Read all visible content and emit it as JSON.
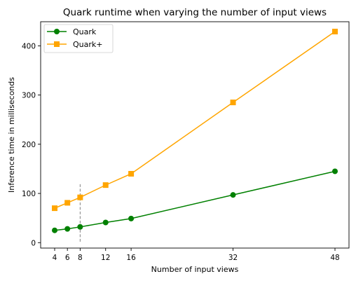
{
  "chart_data": {
    "type": "line",
    "title": "Quark runtime when varying the number of input views",
    "xlabel": "Number of input views",
    "ylabel": "Inference time in milliseconds",
    "x": [
      4,
      6,
      8,
      12,
      16,
      32,
      48
    ],
    "x_ticks": [
      4,
      6,
      8,
      12,
      16,
      32,
      48
    ],
    "y_ticks": [
      0,
      100,
      200,
      300,
      400
    ],
    "xlim": [
      1.8,
      50.2
    ],
    "ylim": [
      -11,
      449
    ],
    "grid": false,
    "legend_position": "top-left",
    "series": [
      {
        "name": "Quark",
        "color": "#008000",
        "marker": "circle",
        "values": [
          25,
          28,
          32,
          41,
          49,
          97,
          145
        ]
      },
      {
        "name": "Quark+",
        "color": "#FFA500",
        "marker": "square",
        "values": [
          70,
          81,
          92,
          117,
          140,
          285,
          429
        ]
      }
    ],
    "annotations": [
      {
        "type": "vertical-dashed-line",
        "x": 8,
        "y_range": [
          2,
          121
        ],
        "color": "#808080"
      }
    ]
  }
}
